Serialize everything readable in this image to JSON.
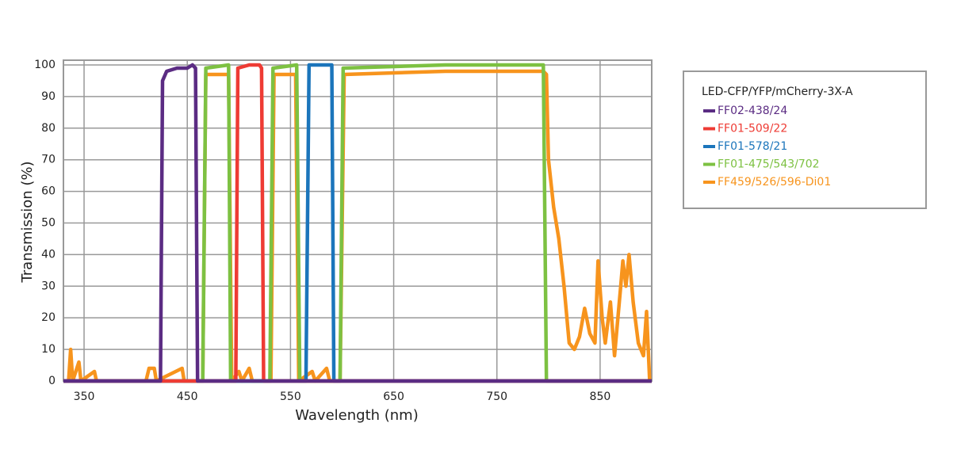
{
  "chart_data": {
    "type": "line",
    "x_label": "Wavelength (nm)",
    "y_label": "Transmission (%)",
    "xlim": [
      330,
      900
    ],
    "ylim": [
      0,
      100
    ],
    "xticks": [
      350,
      450,
      550,
      650,
      750,
      850
    ],
    "yticks": [
      0,
      10,
      20,
      30,
      40,
      50,
      60,
      70,
      80,
      90,
      100
    ],
    "grid": true,
    "legend_title": "LED-CFP/YFP/mCherry-3X-A",
    "legend_position": "right",
    "series": [
      {
        "name": "FF02-438/24",
        "color": "#5b2c83",
        "x": [
          330,
          424,
          426,
          430,
          440,
          450,
          455,
          458,
          460,
          900
        ],
        "values": [
          0,
          0,
          95,
          98,
          99,
          99,
          100,
          99,
          0,
          0
        ]
      },
      {
        "name": "FF01-509/22",
        "color": "#ee3b34",
        "x": [
          330,
          497,
          499,
          510,
          520,
          522,
          524,
          900
        ],
        "values": [
          0,
          0,
          99,
          100,
          100,
          99,
          0,
          0
        ]
      },
      {
        "name": "FF01-578/21",
        "color": "#1b75bb",
        "x": [
          330,
          565,
          568,
          580,
          590,
          592,
          900
        ],
        "values": [
          0,
          0,
          100,
          100,
          100,
          0,
          0
        ]
      },
      {
        "name": "FF01-475/543/702",
        "color": "#7dc142",
        "x": [
          330,
          465,
          468,
          490,
          492,
          530,
          533,
          556,
          559,
          598,
          601,
          700,
          795,
          798,
          900
        ],
        "values": [
          0,
          0,
          99,
          100,
          0,
          0,
          99,
          100,
          0,
          0,
          99,
          100,
          100,
          0,
          0
        ]
      },
      {
        "name": "FF459/526/596-Di01",
        "color": "#f7941d",
        "x": [
          330,
          335,
          337,
          339,
          345,
          347,
          360,
          362,
          364,
          410,
          413,
          418,
          420,
          445,
          447,
          449,
          465,
          468,
          490,
          493,
          500,
          503,
          510,
          513,
          515,
          531,
          534,
          555,
          558,
          571,
          574,
          585,
          588,
          598,
          602,
          700,
          795,
          798,
          800,
          805,
          810,
          815,
          820,
          825,
          830,
          835,
          840,
          845,
          848,
          852,
          855,
          860,
          864,
          870,
          872,
          875,
          878,
          882,
          887,
          892,
          895,
          898
        ],
        "values": [
          0,
          0,
          10,
          0,
          6,
          0,
          3,
          0,
          0,
          0,
          4,
          4,
          0,
          4,
          0,
          0,
          0,
          97,
          97,
          0,
          3,
          0,
          4,
          0,
          0,
          0,
          97,
          97,
          0,
          3,
          0,
          4,
          0,
          0,
          97,
          98,
          98,
          97,
          70,
          55,
          45,
          30,
          12,
          10,
          14,
          23,
          15,
          12,
          38,
          20,
          12,
          25,
          8,
          30,
          38,
          30,
          40,
          25,
          12,
          8,
          22,
          0
        ]
      }
    ]
  }
}
